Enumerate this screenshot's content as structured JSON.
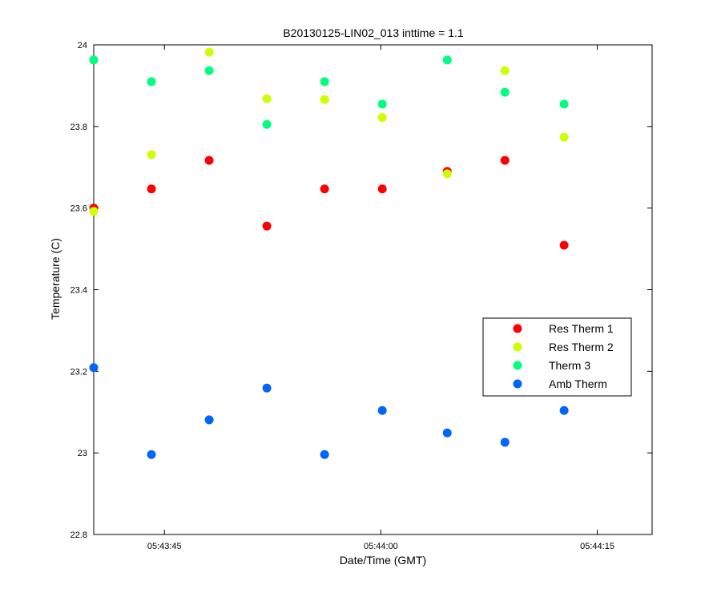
{
  "chart_data": {
    "type": "scatter",
    "title": "B20130125-LIN02_013 inttime = 1.1",
    "xlabel": "Date/Time (GMT)",
    "ylabel": "Temperature (C)",
    "ylim": [
      22.8,
      24
    ],
    "xlim": [
      "05:43:40.1",
      "05:44:18.8"
    ],
    "y_ticks": [
      "22.8",
      "23",
      "23.2",
      "23.4",
      "23.6",
      "23.8",
      "24"
    ],
    "x_ticks": [
      "05:43:45",
      "05:44:00",
      "05:44:15"
    ],
    "grid": false,
    "legend_position": "right",
    "x": [
      "05:43:40.1",
      "05:43:44.1",
      "05:43:48.1",
      "05:43:52.1",
      "05:43:56.1",
      "05:44:00.1",
      "05:44:04.6",
      "05:44:08.6",
      "05:44:12.7"
    ],
    "series": [
      {
        "name": "Res Therm 1",
        "color": "#ff0000",
        "values": [
          23.6,
          23.647,
          23.717,
          23.556,
          23.647,
          23.647,
          23.69,
          23.717,
          23.509
        ]
      },
      {
        "name": "Res Therm 2",
        "color": "#ccff00",
        "values": [
          23.592,
          23.731,
          23.982,
          23.868,
          23.866,
          23.822,
          23.684,
          23.937,
          23.774
        ]
      },
      {
        "name": "Therm 3",
        "color": "#00ff7f",
        "values": [
          23.963,
          23.91,
          23.937,
          23.805,
          23.91,
          23.855,
          23.963,
          23.884,
          23.855
        ]
      },
      {
        "name": "Amb Therm",
        "color": "#0064ff",
        "values": [
          23.209,
          22.996,
          23.081,
          23.159,
          22.996,
          23.104,
          23.049,
          23.026,
          23.104
        ]
      }
    ]
  }
}
